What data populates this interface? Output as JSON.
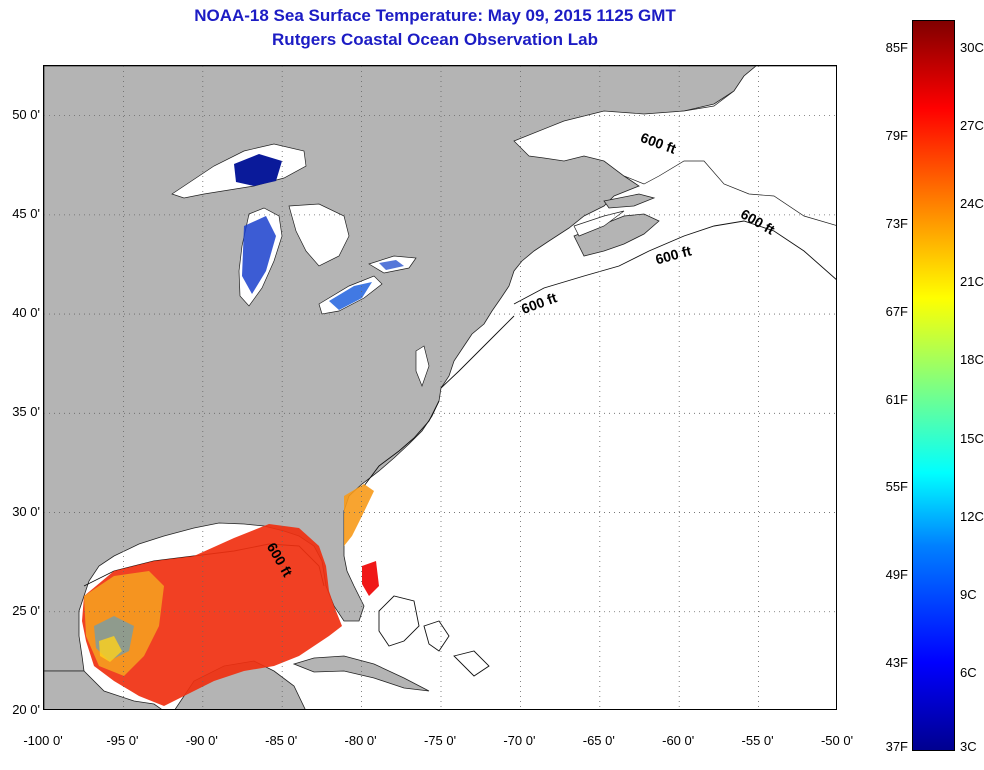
{
  "title": "NOAA-18 Sea Surface Temperature:  May 09, 2015 1125 GMT",
  "subtitle": "Rutgers Coastal Ocean Observation Lab",
  "colors": {
    "title": "#1c1cc4",
    "land": "#b4b4b4",
    "ocean": "#ffffff",
    "warm_water": "#f03010",
    "cold_water": "#0a1a9a"
  },
  "map": {
    "lon_range": [
      -100,
      -50
    ],
    "lat_range": [
      20,
      52.5
    ],
    "grid": "dotted",
    "lat_ticks": [
      {
        "value": 20,
        "label": "20 0'"
      },
      {
        "value": 25,
        "label": "25 0'"
      },
      {
        "value": 30,
        "label": "30 0'"
      },
      {
        "value": 35,
        "label": "35 0'"
      },
      {
        "value": 40,
        "label": "40 0'"
      },
      {
        "value": 45,
        "label": "45 0'"
      },
      {
        "value": 50,
        "label": "50 0'"
      }
    ],
    "lon_ticks": [
      {
        "value": -100,
        "label": "-100 0'"
      },
      {
        "value": -95,
        "label": "-95 0'"
      },
      {
        "value": -90,
        "label": "-90 0'"
      },
      {
        "value": -85,
        "label": "-85 0'"
      },
      {
        "value": -80,
        "label": "-80 0'"
      },
      {
        "value": -75,
        "label": "-75 0'"
      },
      {
        "value": -70,
        "label": "-70 0'"
      },
      {
        "value": -65,
        "label": "-65 0'"
      },
      {
        "value": -60,
        "label": "-60 0'"
      },
      {
        "value": -55,
        "label": "-55 0'"
      },
      {
        "value": -50,
        "label": "-50 0'"
      }
    ],
    "isobath_label": "600 ft",
    "isobath_positions": [
      {
        "lon": -62.5,
        "lat": 48.7
      },
      {
        "lon": -56.2,
        "lat": 44.9
      },
      {
        "lon": -61.4,
        "lat": 42.5
      },
      {
        "lon": -69.8,
        "lat": 40.0
      },
      {
        "lon": -86.0,
        "lat": 28.3
      }
    ]
  },
  "colorbar": {
    "fahrenheit": [
      "85F",
      "79F",
      "73F",
      "67F",
      "61F",
      "55F",
      "49F",
      "43F",
      "37F"
    ],
    "celsius": [
      "30C",
      "27C",
      "24C",
      "21C",
      "18C",
      "15C",
      "12C",
      "9C",
      "6C",
      "3C"
    ]
  }
}
